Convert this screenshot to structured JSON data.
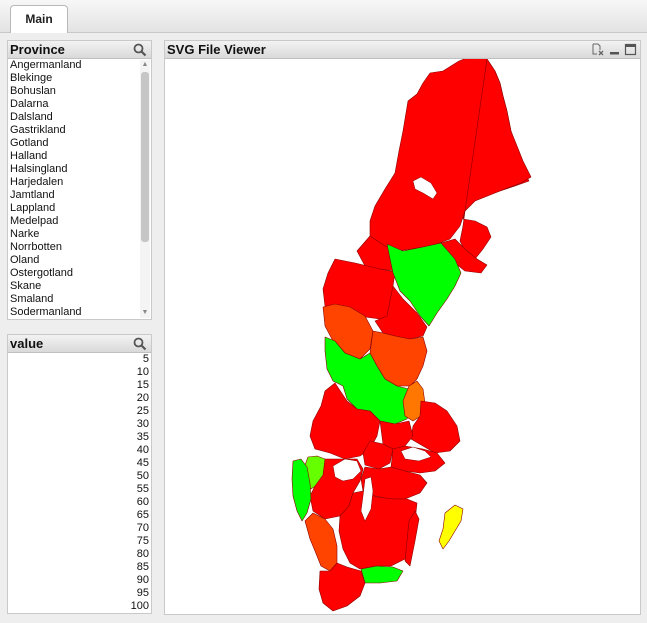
{
  "tabs": [
    {
      "label": "Main"
    }
  ],
  "province": {
    "title": "Province",
    "items": [
      "Angermanland",
      "Blekinge",
      "Bohuslan",
      "Dalarna",
      "Dalsland",
      "Gastrikland",
      "Gotland",
      "Halland",
      "Halsingland",
      "Harjedalen",
      "Jamtland",
      "Lappland",
      "Medelpad",
      "Narke",
      "Norrbotten",
      "Oland",
      "Ostergotland",
      "Skane",
      "Smaland",
      "Sodermanland"
    ]
  },
  "value": {
    "title": "value",
    "items": [
      "5",
      "10",
      "15",
      "20",
      "25",
      "30",
      "35",
      "40",
      "45",
      "50",
      "55",
      "60",
      "65",
      "70",
      "75",
      "80",
      "85",
      "90",
      "95",
      "100"
    ]
  },
  "viewer": {
    "title": "SVG File Viewer"
  },
  "icons": {
    "search": "search-icon",
    "clear": "clear-selection-icon",
    "minimize": "minimize-icon",
    "maximize": "maximize-icon",
    "scroll_up": "scroll-up-arrow",
    "scroll_down": "scroll-down-arrow"
  },
  "colors": {
    "red": "#ff0000",
    "green": "#00ff00",
    "lime": "#66ff00",
    "orange_red": "#ff4400",
    "orange": "#ff7700",
    "yellow": "#ffff00"
  }
}
